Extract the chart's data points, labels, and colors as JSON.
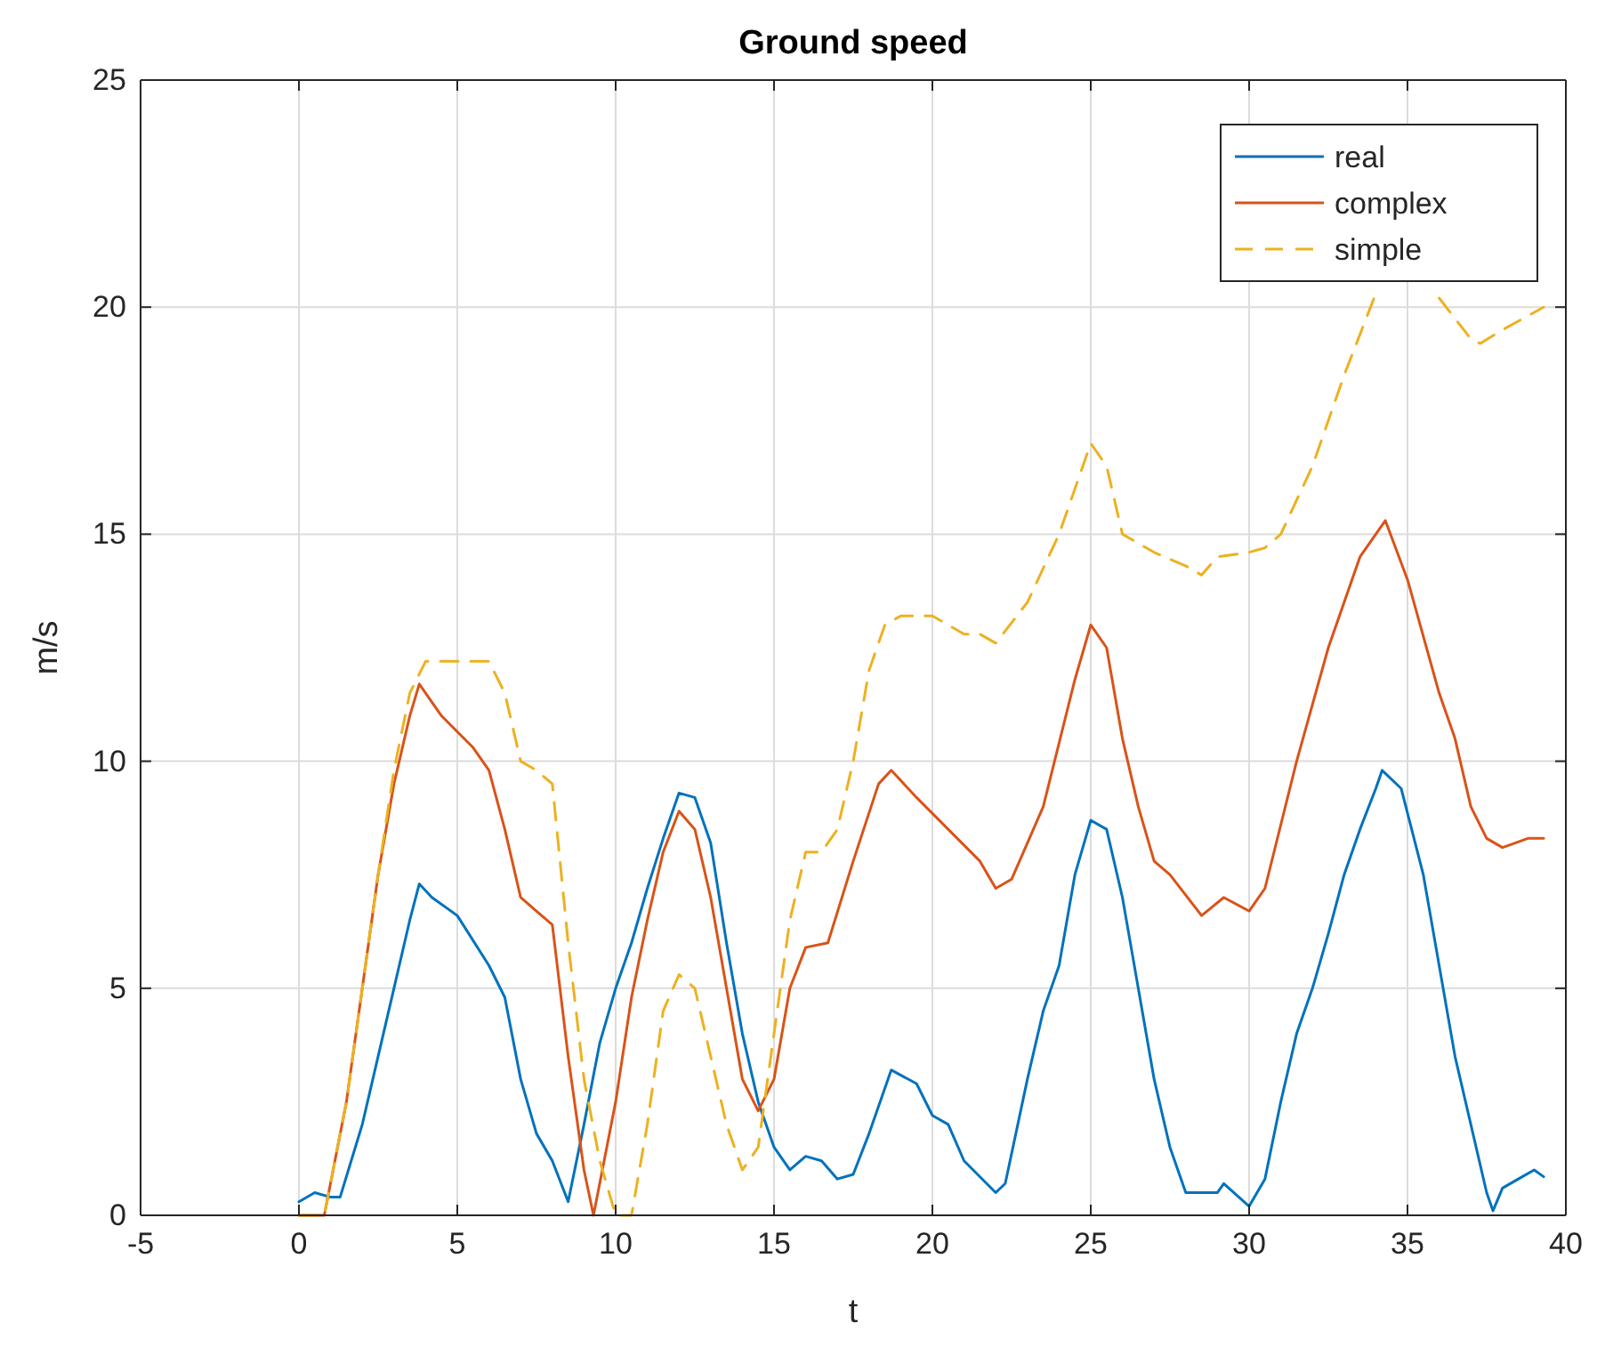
{
  "chart_data": {
    "type": "line",
    "title": "Ground speed",
    "xlabel": "t",
    "ylabel": "m/s",
    "xlim": [
      -5,
      40
    ],
    "xticks": [
      -5,
      0,
      5,
      10,
      15,
      20,
      25,
      30,
      35,
      40
    ],
    "ylim": [
      0,
      25
    ],
    "yticks": [
      0,
      5,
      10,
      15,
      20,
      25
    ],
    "grid": true,
    "legend": "top right",
    "series": [
      {
        "name": "real",
        "color": "#0072bd",
        "line_style": "solid",
        "x": [
          0,
          0.5,
          1,
          1.3,
          2,
          2.5,
          3,
          3.5,
          3.8,
          4.2,
          5,
          6,
          6.5,
          7,
          7.5,
          8,
          8.5,
          9,
          9.5,
          10,
          10.5,
          11,
          11.5,
          12,
          12.5,
          13,
          13.5,
          14,
          14.5,
          15,
          15.5,
          16,
          16.5,
          17,
          17.5,
          18,
          18.7,
          19.5,
          20,
          20.5,
          21,
          22,
          22.3,
          23,
          23.5,
          24,
          24.5,
          25,
          25.5,
          26,
          26.5,
          27,
          27.5,
          28,
          29,
          29.2,
          30,
          30.5,
          31,
          31.5,
          32,
          32.5,
          33,
          33.5,
          34,
          34.2,
          34.8,
          35.5,
          36,
          36.5,
          37,
          37.5,
          37.7,
          38,
          38.5,
          39,
          39.3
        ],
        "values": [
          0.3,
          0.5,
          0.4,
          0.4,
          2,
          3.5,
          5,
          6.5,
          7.3,
          7,
          6.6,
          5.5,
          4.8,
          3,
          1.8,
          1.2,
          0.3,
          2,
          3.8,
          5,
          6,
          7.2,
          8.3,
          9.3,
          9.2,
          8.2,
          6,
          4,
          2.5,
          1.5,
          1,
          1.3,
          1.2,
          0.8,
          0.9,
          1.8,
          3.2,
          2.9,
          2.2,
          2,
          1.2,
          0.5,
          0.7,
          3,
          4.5,
          5.5,
          7.5,
          8.7,
          8.5,
          7,
          5,
          3,
          1.5,
          0.5,
          0.5,
          0.7,
          0.2,
          0.8,
          2.5,
          4,
          5,
          6.2,
          7.5,
          8.5,
          9.4,
          9.8,
          9.4,
          7.5,
          5.5,
          3.5,
          2,
          0.5,
          0.1,
          0.6,
          0.8,
          1,
          0.85
        ]
      },
      {
        "name": "complex",
        "color": "#d95319",
        "line_style": "solid",
        "x": [
          0,
          0.8,
          1.5,
          2,
          2.5,
          3,
          3.5,
          3.8,
          4.5,
          5.5,
          6,
          6.5,
          7,
          7.5,
          8,
          8.5,
          9,
          9.3,
          10,
          10.5,
          11,
          11.5,
          12,
          12.5,
          13,
          13.5,
          14,
          14.5,
          15,
          15.5,
          16,
          16.7,
          17.5,
          18.3,
          18.7,
          19.5,
          20.5,
          21.5,
          22,
          22.5,
          23.5,
          24.5,
          25,
          25.5,
          26,
          26.5,
          27,
          27.5,
          28.5,
          29.2,
          30,
          30.5,
          31.5,
          32.5,
          33.5,
          34.3,
          35,
          36,
          36.5,
          37,
          37.5,
          38,
          38.8,
          39.3
        ],
        "values": [
          0,
          0,
          2.5,
          5,
          7.5,
          9.5,
          11,
          11.7,
          11,
          10.3,
          9.8,
          8.5,
          7,
          6.7,
          6.4,
          3.5,
          1,
          0,
          2.5,
          4.8,
          6.5,
          8,
          8.9,
          8.5,
          7,
          5,
          3,
          2.3,
          3,
          5,
          5.9,
          6,
          7.8,
          9.5,
          9.8,
          9.2,
          8.5,
          7.8,
          7.2,
          7.4,
          9,
          11.8,
          13,
          12.5,
          10.5,
          9,
          7.8,
          7.5,
          6.6,
          7,
          6.7,
          7.2,
          10,
          12.5,
          14.5,
          15.3,
          14,
          11.5,
          10.5,
          9,
          8.3,
          8.1,
          8.3,
          8.3
        ]
      },
      {
        "name": "simple",
        "color": "#edb120",
        "line_style": "dashed",
        "x": [
          0,
          0.8,
          1.5,
          2,
          2.5,
          3,
          3.5,
          4,
          6,
          6.5,
          7,
          7.5,
          8,
          8.5,
          9,
          9.5,
          10,
          10.5,
          11,
          11.5,
          12,
          12.5,
          13,
          13.5,
          14,
          14.5,
          15,
          15.5,
          16,
          16.5,
          17,
          17.5,
          18,
          18.5,
          19,
          20,
          20.5,
          21,
          21.5,
          22,
          23,
          24,
          25,
          25.5,
          26,
          27,
          28,
          28.5,
          29,
          30,
          30.5,
          31,
          32,
          33,
          34,
          35,
          35.5,
          36,
          37,
          37.3,
          38,
          39.3
        ],
        "values": [
          0,
          0,
          2.5,
          5,
          7.5,
          9.8,
          11.5,
          12.2,
          12.2,
          11.5,
          10,
          9.8,
          9.5,
          6,
          3,
          1.2,
          0,
          0,
          2,
          4.5,
          5.3,
          5,
          3.5,
          2,
          1,
          1.5,
          4,
          6.5,
          8,
          8,
          8.5,
          10,
          12,
          13,
          13.2,
          13.2,
          13,
          12.8,
          12.8,
          12.6,
          13.5,
          15,
          17,
          16.5,
          15,
          14.6,
          14.3,
          14.1,
          14.5,
          14.6,
          14.7,
          15,
          16.5,
          18.5,
          20.3,
          null,
          null,
          20.2,
          19.3,
          19.2,
          19.5,
          20
        ]
      }
    ]
  }
}
